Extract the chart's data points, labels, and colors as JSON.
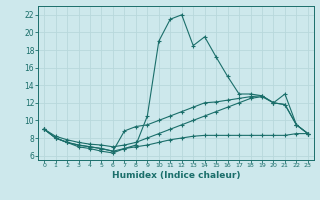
{
  "xlabel": "Humidex (Indice chaleur)",
  "xlim": [
    -0.5,
    23.5
  ],
  "ylim": [
    5.5,
    23.0
  ],
  "xticks": [
    0,
    1,
    2,
    3,
    4,
    5,
    6,
    7,
    8,
    9,
    10,
    11,
    12,
    13,
    14,
    15,
    16,
    17,
    18,
    19,
    20,
    21,
    22,
    23
  ],
  "yticks": [
    6,
    8,
    10,
    12,
    14,
    16,
    18,
    20,
    22
  ],
  "bg_color": "#cde8ec",
  "line_color": "#1a6e6a",
  "grid_color": "#b8d8dc",
  "lines": [
    {
      "x": [
        0,
        1,
        2,
        3,
        4,
        5,
        6,
        7,
        8,
        9,
        10,
        11,
        12,
        13,
        14,
        15,
        16,
        17,
        18,
        19,
        20,
        21,
        22,
        23
      ],
      "y": [
        9.0,
        8.0,
        7.5,
        7.0,
        6.8,
        6.5,
        6.3,
        6.8,
        7.2,
        10.5,
        19.0,
        21.5,
        22.0,
        18.5,
        19.5,
        17.2,
        15.0,
        13.0,
        13.0,
        12.8,
        12.0,
        13.0,
        9.5,
        8.5
      ]
    },
    {
      "x": [
        0,
        1,
        2,
        3,
        4,
        5,
        6,
        7,
        8,
        9,
        10,
        11,
        12,
        13,
        14,
        15,
        16,
        17,
        18,
        19,
        20,
        21,
        22,
        23
      ],
      "y": [
        9.0,
        8.0,
        7.5,
        7.2,
        7.0,
        6.8,
        6.5,
        8.8,
        9.3,
        9.5,
        10.0,
        10.5,
        11.0,
        11.5,
        12.0,
        12.1,
        12.3,
        12.5,
        12.7,
        12.8,
        12.0,
        11.8,
        9.5,
        8.5
      ]
    },
    {
      "x": [
        0,
        1,
        2,
        3,
        4,
        5,
        6,
        7,
        8,
        9,
        10,
        11,
        12,
        13,
        14,
        15,
        16,
        17,
        18,
        19,
        20,
        21,
        22,
        23
      ],
      "y": [
        9.0,
        8.2,
        7.8,
        7.5,
        7.3,
        7.2,
        7.0,
        7.2,
        7.5,
        8.0,
        8.5,
        9.0,
        9.5,
        10.0,
        10.5,
        11.0,
        11.5,
        12.0,
        12.5,
        12.7,
        12.0,
        11.8,
        9.5,
        8.5
      ]
    },
    {
      "x": [
        0,
        1,
        2,
        3,
        4,
        5,
        6,
        7,
        8,
        9,
        10,
        11,
        12,
        13,
        14,
        15,
        16,
        17,
        18,
        19,
        20,
        21,
        22,
        23
      ],
      "y": [
        9.0,
        8.0,
        7.5,
        7.2,
        7.0,
        6.8,
        6.5,
        6.8,
        7.0,
        7.2,
        7.5,
        7.8,
        8.0,
        8.2,
        8.3,
        8.3,
        8.3,
        8.3,
        8.3,
        8.3,
        8.3,
        8.3,
        8.5,
        8.5
      ]
    }
  ]
}
